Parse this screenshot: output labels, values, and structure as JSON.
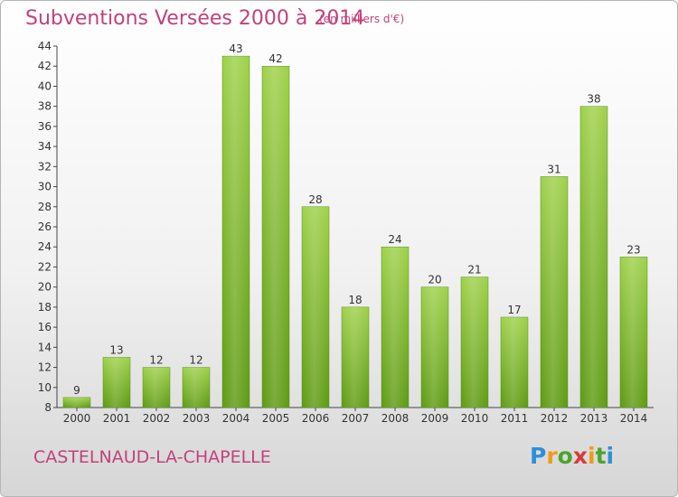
{
  "header": {
    "title": "Subventions Versées 2000 à 2014",
    "subtitle": "(en milliers d'€)"
  },
  "footer": {
    "commune": "CASTELNAUD-LA-CHAPELLE",
    "logo_text": "Proxiti"
  },
  "colors": {
    "title": "#c3417b",
    "bar_top": "#9ed14a",
    "bar_bottom": "#5e9a12"
  },
  "chart_data": {
    "type": "bar",
    "title": "Subventions Versées 2000 à 2014",
    "subtitle": "(en milliers d'€)",
    "categories": [
      "2000",
      "2001",
      "2002",
      "2003",
      "2004",
      "2005",
      "2006",
      "2007",
      "2008",
      "2009",
      "2010",
      "2011",
      "2012",
      "2013",
      "2014"
    ],
    "values": [
      9,
      13,
      12,
      12,
      43,
      42,
      28,
      18,
      24,
      20,
      21,
      17,
      31,
      38,
      23
    ],
    "ylim": [
      8,
      44
    ],
    "yticks": [
      8,
      10,
      12,
      14,
      16,
      18,
      20,
      22,
      24,
      26,
      28,
      30,
      32,
      34,
      36,
      38,
      40,
      42,
      44
    ],
    "grid": false,
    "legend": "none"
  }
}
